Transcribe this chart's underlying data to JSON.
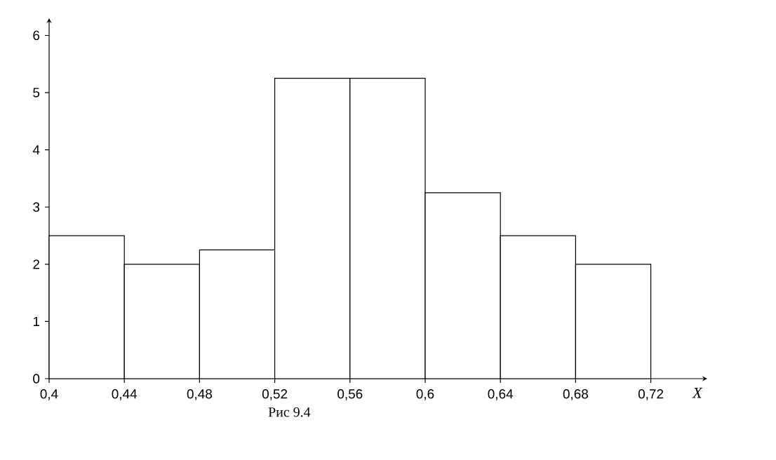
{
  "chart_data": {
    "type": "histogram",
    "xlabel": "X",
    "annotations": [
      "Рис 9.4"
    ],
    "color": "#ffffff",
    "bins": [
      0.4,
      0.44,
      0.48,
      0.52,
      0.56,
      0.6,
      0.64,
      0.68,
      0.72
    ],
    "values": [
      2.5,
      2,
      2.25,
      5.25,
      5.25,
      3.25,
      2.5,
      2
    ],
    "xlim": [
      0.4,
      0.75
    ],
    "ylim": [
      0,
      6.3
    ],
    "xticks": [
      {
        "value": 0.4,
        "label": "0,4"
      },
      {
        "value": 0.44,
        "label": "0,44"
      },
      {
        "value": 0.48,
        "label": "0,48"
      },
      {
        "value": 0.52,
        "label": "0,52"
      },
      {
        "value": 0.56,
        "label": "0,56"
      },
      {
        "value": 0.6,
        "label": "0,6"
      },
      {
        "value": 0.64,
        "label": "0,64"
      },
      {
        "value": 0.68,
        "label": "0,68"
      },
      {
        "value": 0.72,
        "label": "0,72"
      }
    ],
    "yticks": [
      0,
      1,
      2,
      3,
      4,
      5,
      6
    ]
  }
}
